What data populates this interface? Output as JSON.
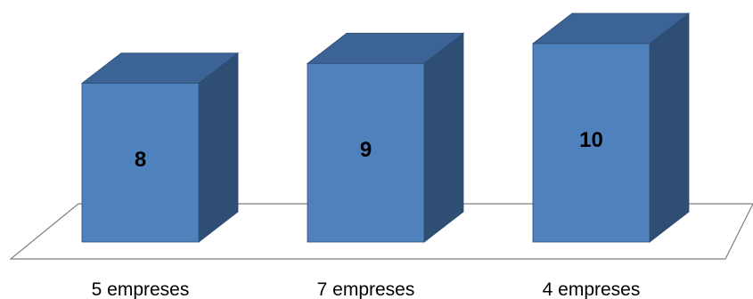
{
  "chart_data": {
    "type": "bar",
    "style": "3d-column",
    "categories": [
      "5 empreses",
      "7 empreses",
      "4 empreses"
    ],
    "values": [
      8,
      9,
      10
    ],
    "title": "",
    "xlabel": "",
    "ylabel": "",
    "ylim": [
      0,
      10
    ],
    "grid": false,
    "legend": "none",
    "colors": {
      "front": "#4F81BD",
      "side": "#2F4E74",
      "top": "#3C6396",
      "edge": "#2E4D73",
      "floor_stroke": "#7F7F7F"
    }
  }
}
